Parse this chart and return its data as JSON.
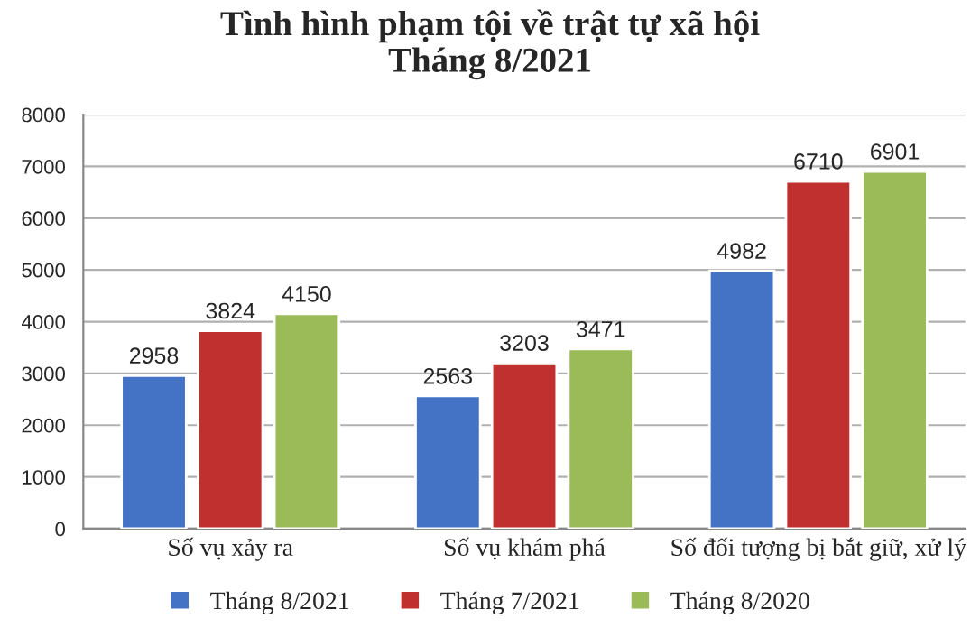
{
  "chart_data": {
    "type": "bar",
    "title": "Tình hình phạm tội về trật tự xã hội\nTháng 8/2021",
    "categories": [
      "Số vụ xảy ra",
      "Số vụ khám phá",
      "Số đối tượng bị bắt giữ, xử lý"
    ],
    "series": [
      {
        "name": "Tháng 8/2021",
        "color": "#4472c4",
        "values": [
          2958,
          2563,
          4982
        ]
      },
      {
        "name": "Tháng 7/2021",
        "color": "#c0302f",
        "values": [
          3824,
          3203,
          6710
        ]
      },
      {
        "name": "Tháng 8/2020",
        "color": "#9bbb59",
        "values": [
          4150,
          3471,
          6901
        ]
      }
    ],
    "ylim": [
      0,
      8000
    ],
    "yticks": [
      0,
      1000,
      2000,
      3000,
      4000,
      5000,
      6000,
      7000,
      8000
    ],
    "grid": "y",
    "legend": "bottom",
    "data_labels": true
  }
}
